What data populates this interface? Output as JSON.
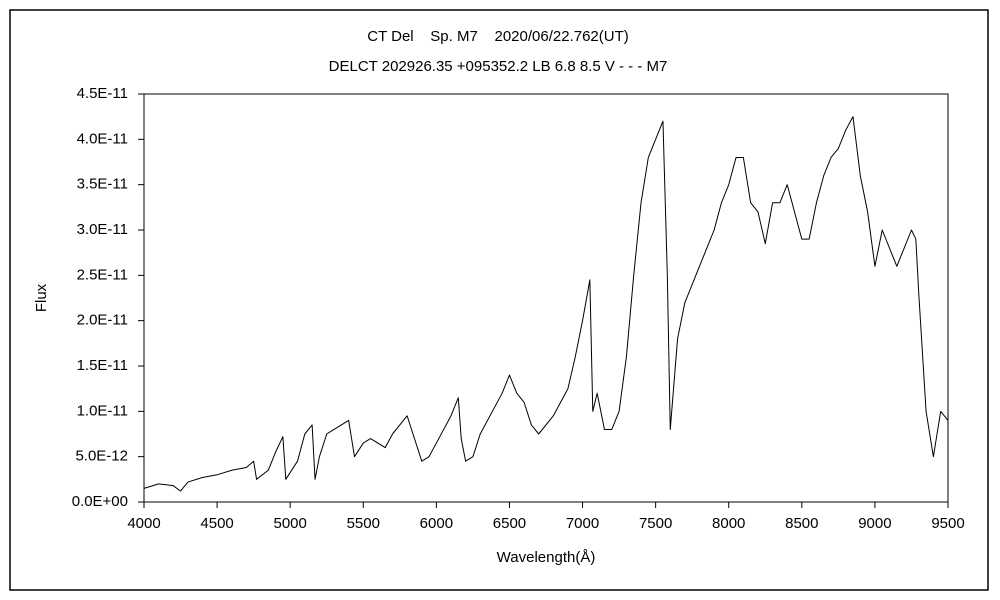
{
  "chart_data": {
    "type": "line",
    "title": "CT Del    Sp. M7    2020/06/22.762(UT)",
    "subtitle": "DELCT 202926.35 +095352.2 LB 6.8 8.5 V - - - M7",
    "x_label": "Wavelength(Å)",
    "y_label": "Flux",
    "xlim": [
      4000,
      9500
    ],
    "xticks": [
      4000,
      4500,
      5000,
      5500,
      6000,
      6500,
      7000,
      7500,
      8000,
      8500,
      9000,
      9500
    ],
    "ylim": [
      0,
      4.5e-11
    ],
    "yticks": [
      {
        "value": 0,
        "label": "0.0E+00"
      },
      {
        "value": 5e-12,
        "label": "5.0E-12"
      },
      {
        "value": 1e-11,
        "label": "1.0E-11"
      },
      {
        "value": 1.5e-11,
        "label": "1.5E-11"
      },
      {
        "value": 2e-11,
        "label": "2.0E-11"
      },
      {
        "value": 2.5e-11,
        "label": "2.5E-11"
      },
      {
        "value": 3e-11,
        "label": "3.0E-11"
      },
      {
        "value": 3.5e-11,
        "label": "3.5E-11"
      },
      {
        "value": 4e-11,
        "label": "4.0E-11"
      },
      {
        "value": 4.5e-11,
        "label": "4.5E-11"
      }
    ],
    "grid": false,
    "series": [
      {
        "color": "#000000",
        "x": [
          4000,
          4100,
          4200,
          4250,
          4300,
          4400,
          4500,
          4600,
          4700,
          4750,
          4770,
          4850,
          4900,
          4950,
          4970,
          5050,
          5100,
          5150,
          5170,
          5200,
          5250,
          5300,
          5350,
          5400,
          5440,
          5500,
          5550,
          5650,
          5700,
          5800,
          5850,
          5900,
          5950,
          6000,
          6100,
          6150,
          6170,
          6200,
          6250,
          6300,
          6400,
          6450,
          6500,
          6550,
          6600,
          6650,
          6700,
          6800,
          6900,
          6950,
          7000,
          7050,
          7070,
          7100,
          7150,
          7200,
          7250,
          7300,
          7350,
          7400,
          7450,
          7500,
          7550,
          7580,
          7600,
          7620,
          7650,
          7700,
          7750,
          7800,
          7850,
          7900,
          7950,
          8000,
          8050,
          8100,
          8150,
          8200,
          8250,
          8300,
          8350,
          8400,
          8450,
          8500,
          8550,
          8600,
          8650,
          8700,
          8750,
          8800,
          8850,
          8900,
          8950,
          9000,
          9050,
          9100,
          9150,
          9200,
          9250,
          9280,
          9300,
          9350,
          9400,
          9450,
          9500
        ],
        "values": [
          1.5e-12,
          2e-12,
          1.8e-12,
          1.2e-12,
          2.2e-12,
          2.7e-12,
          3e-12,
          3.5e-12,
          3.8e-12,
          4.5e-12,
          2.5e-12,
          3.5e-12,
          5.5e-12,
          7.2e-12,
          2.5e-12,
          4.5e-12,
          7.5e-12,
          8.5e-12,
          2.5e-12,
          5e-12,
          7.5e-12,
          8e-12,
          8.5e-12,
          9e-12,
          5e-12,
          6.5e-12,
          7e-12,
          6e-12,
          7.5e-12,
          9.5e-12,
          7e-12,
          4.5e-12,
          5e-12,
          6.5e-12,
          9.5e-12,
          1.15e-11,
          7e-12,
          4.5e-12,
          5e-12,
          7.5e-12,
          1.05e-11,
          1.2e-11,
          1.4e-11,
          1.2e-11,
          1.1e-11,
          8.5e-12,
          7.5e-12,
          9.5e-12,
          1.25e-11,
          1.6e-11,
          2e-11,
          2.45e-11,
          1e-11,
          1.2e-11,
          8e-12,
          8e-12,
          1e-11,
          1.6e-11,
          2.5e-11,
          3.3e-11,
          3.8e-11,
          4e-11,
          4.2e-11,
          2.5e-11,
          8e-12,
          1.2e-11,
          1.8e-11,
          2.2e-11,
          2.4e-11,
          2.6e-11,
          2.8e-11,
          3e-11,
          3.3e-11,
          3.5e-11,
          3.8e-11,
          3.8e-11,
          3.3e-11,
          3.2e-11,
          2.85e-11,
          3.3e-11,
          3.3e-11,
          3.5e-11,
          3.2e-11,
          2.9e-11,
          2.9e-11,
          3.3e-11,
          3.6e-11,
          3.8e-11,
          3.9e-11,
          4.1e-11,
          4.25e-11,
          3.6e-11,
          3.2e-11,
          2.6e-11,
          3e-11,
          2.8e-11,
          2.6e-11,
          2.8e-11,
          3e-11,
          2.9e-11,
          2.3e-11,
          1e-11,
          5e-12,
          1e-11,
          9e-12
        ]
      }
    ]
  }
}
